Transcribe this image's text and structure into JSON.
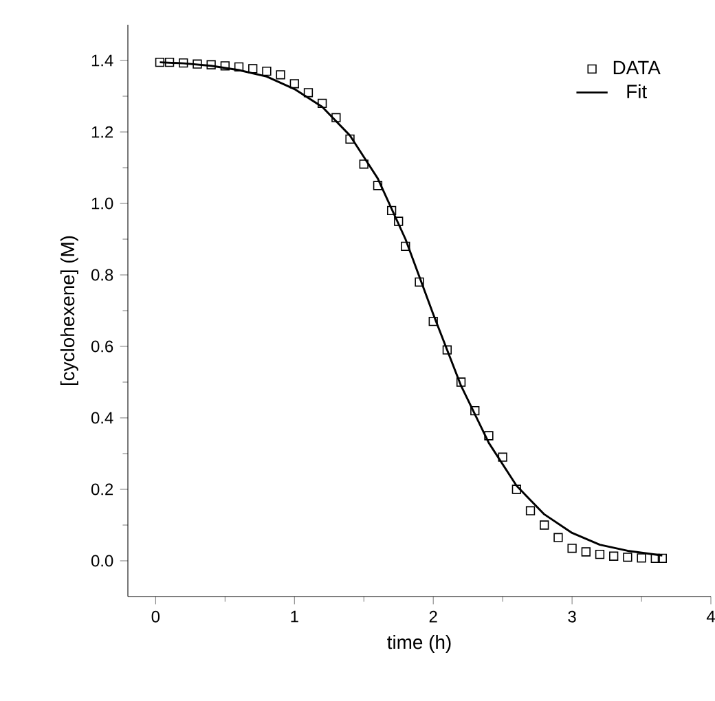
{
  "chart_data": {
    "type": "scatter",
    "xlabel": "time (h)",
    "ylabel": "[cyclohexene] (M)",
    "xlim": [
      -0.2,
      4
    ],
    "ylim": [
      -0.1,
      1.5
    ],
    "xticks": [
      0,
      1,
      2,
      3,
      4
    ],
    "yticks": [
      {
        "value": 0,
        "label": "0.0"
      },
      0.2,
      0.4,
      0.6,
      0.8,
      {
        "value": 1,
        "label": "1.0"
      },
      1.2,
      1.4
    ],
    "legend": "top right",
    "series": [
      {
        "name": "DATA",
        "marker": "square",
        "color": "#000000",
        "x": [
          0.03,
          0.1,
          0.2,
          0.3,
          0.4,
          0.5,
          0.6,
          0.7,
          0.8,
          0.9,
          1.0,
          1.1,
          1.2,
          1.3,
          1.4,
          1.5,
          1.6,
          1.7,
          1.75,
          1.8,
          1.9,
          2.0,
          2.1,
          2.2,
          2.3,
          2.4,
          2.5,
          2.6,
          2.7,
          2.8,
          2.9,
          3.0,
          3.1,
          3.2,
          3.3,
          3.4,
          3.5,
          3.6,
          3.65
        ],
        "values": [
          1.395,
          1.395,
          1.393,
          1.39,
          1.388,
          1.385,
          1.382,
          1.377,
          1.37,
          1.36,
          1.335,
          1.31,
          1.28,
          1.24,
          1.18,
          1.11,
          1.05,
          0.98,
          0.95,
          0.88,
          0.78,
          0.67,
          0.59,
          0.5,
          0.42,
          0.35,
          0.29,
          0.2,
          0.14,
          0.1,
          0.065,
          0.035,
          0.025,
          0.018,
          0.013,
          0.01,
          0.008,
          0.007,
          0.007
        ]
      },
      {
        "name": "Fit",
        "type": "line",
        "marker": "none",
        "line_style": "solid",
        "color": "#000000",
        "x": [
          0.03,
          0.2,
          0.4,
          0.6,
          0.8,
          1.0,
          1.2,
          1.4,
          1.6,
          1.8,
          2.0,
          2.2,
          2.4,
          2.6,
          2.8,
          3.0,
          3.2,
          3.4,
          3.65
        ],
        "values": [
          1.395,
          1.392,
          1.385,
          1.373,
          1.355,
          1.32,
          1.27,
          1.19,
          1.07,
          0.9,
          0.69,
          0.49,
          0.33,
          0.21,
          0.13,
          0.078,
          0.045,
          0.028,
          0.015
        ]
      }
    ]
  }
}
